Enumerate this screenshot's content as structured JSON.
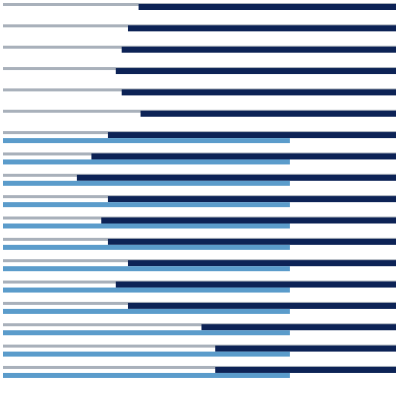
{
  "chart_data": {
    "type": "bar",
    "orientation": "horizontal",
    "stacked": true,
    "title": "",
    "xlabel": "",
    "ylabel": "",
    "grid": false,
    "legend": "none",
    "xlim": [
      0,
      1
    ],
    "rows": [
      {
        "gray": 1.0,
        "left": 0.345,
        "right": 0.655,
        "light": null
      },
      {
        "gray": 1.0,
        "left": 0.318,
        "right": 0.682,
        "light": null
      },
      {
        "gray": 1.0,
        "left": 0.302,
        "right": 0.698,
        "light": null
      },
      {
        "gray": 1.0,
        "left": 0.287,
        "right": 0.713,
        "light": null
      },
      {
        "gray": 1.0,
        "left": 0.302,
        "right": 0.698,
        "light": null
      },
      {
        "gray": 1.0,
        "left": 0.35,
        "right": 0.65,
        "light": 0.0
      },
      {
        "gray": 1.0,
        "left": 0.267,
        "right": 0.733,
        "light": 0.73
      },
      {
        "gray": 1.0,
        "left": 0.225,
        "right": 0.775,
        "light": 0.73
      },
      {
        "gray": 1.0,
        "left": 0.188,
        "right": 0.812,
        "light": 0.73
      },
      {
        "gray": 1.0,
        "left": 0.267,
        "right": 0.733,
        "light": 0.73
      },
      {
        "gray": 1.0,
        "left": 0.25,
        "right": 0.75,
        "light": 0.73
      },
      {
        "gray": 1.0,
        "left": 0.267,
        "right": 0.733,
        "light": 0.73
      },
      {
        "gray": 1.0,
        "left": 0.318,
        "right": 0.682,
        "light": 0.73
      },
      {
        "gray": 1.0,
        "left": 0.287,
        "right": 0.713,
        "light": 0.73
      },
      {
        "gray": 1.0,
        "left": 0.318,
        "right": 0.682,
        "light": 0.73
      },
      {
        "gray": 1.0,
        "left": 0.505,
        "right": 0.495,
        "light": 0.73
      },
      {
        "gray": 1.0,
        "left": 0.54,
        "right": 0.46,
        "light": 0.73
      },
      {
        "gray": 1.0,
        "left": 0.54,
        "right": 0.46,
        "light": 0.73
      }
    ],
    "colors": {
      "gray": "#a9b1bb",
      "navy": "#0d2356",
      "light_blue": "#5b9ccb",
      "background": "#ffffff"
    }
  }
}
